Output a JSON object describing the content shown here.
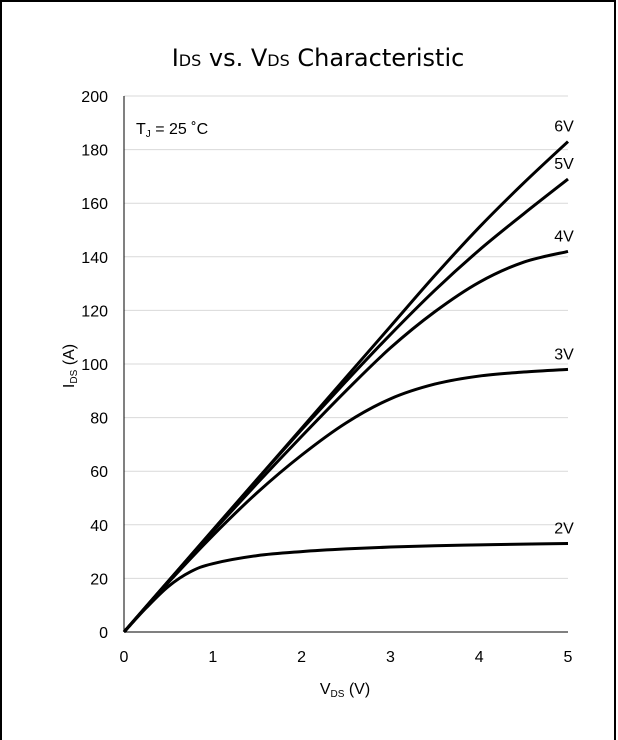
{
  "chart_data": {
    "type": "line",
    "title": {
      "prefix": "I",
      "prefix_sub": "DS",
      "middle": " vs. V",
      "middle_sub": "DS",
      "suffix": " Characteristic"
    },
    "xlabel": {
      "main": "V",
      "sub": "DS",
      "unit": " (V)"
    },
    "ylabel": {
      "main": "I",
      "sub": "DS",
      "unit": " (A)"
    },
    "annotation": {
      "main": "T",
      "sub": "J",
      "rest": " = 25 ˚C"
    },
    "xlim": [
      0,
      5
    ],
    "ylim": [
      0,
      200
    ],
    "x_ticks": [
      0,
      1,
      2,
      3,
      4,
      5
    ],
    "y_ticks": [
      0,
      20,
      40,
      60,
      80,
      100,
      120,
      140,
      160,
      180,
      200
    ],
    "grid": "horizontal",
    "line_color": "#000000",
    "grid_color": "#d9d9d9",
    "series": [
      {
        "name": "2V",
        "x": [
          0,
          0.25,
          0.5,
          0.75,
          1,
          1.5,
          2,
          2.5,
          3,
          3.5,
          4,
          4.5,
          5
        ],
        "y": [
          0,
          9,
          17,
          22.5,
          25.5,
          28.5,
          30,
          31,
          31.7,
          32.2,
          32.5,
          32.8,
          33
        ]
      },
      {
        "name": "3V",
        "x": [
          0,
          0.5,
          1,
          1.5,
          2,
          2.5,
          3,
          3.5,
          4,
          4.5,
          5
        ],
        "y": [
          0,
          18.5,
          36,
          52,
          66,
          78,
          87,
          92.5,
          95.5,
          97,
          98
        ]
      },
      {
        "name": "4V",
        "x": [
          0,
          0.5,
          1,
          1.5,
          2,
          2.5,
          3,
          3.5,
          4,
          4.5,
          5
        ],
        "y": [
          0,
          19,
          37.5,
          55.5,
          73,
          90,
          106,
          119.5,
          130.5,
          138,
          142
        ]
      },
      {
        "name": "5V",
        "x": [
          0,
          0.5,
          1,
          1.5,
          2,
          2.5,
          3,
          3.5,
          4,
          4.5,
          5
        ],
        "y": [
          0,
          19,
          38,
          57,
          75.5,
          93.5,
          111,
          127.5,
          142.5,
          156,
          169
        ]
      },
      {
        "name": "6V",
        "x": [
          0,
          0.5,
          1,
          1.5,
          2,
          2.5,
          3,
          3.5,
          4,
          4.5,
          5
        ],
        "y": [
          0,
          19,
          38,
          57,
          76,
          95,
          114,
          133,
          151,
          167.5,
          183
        ]
      }
    ]
  }
}
